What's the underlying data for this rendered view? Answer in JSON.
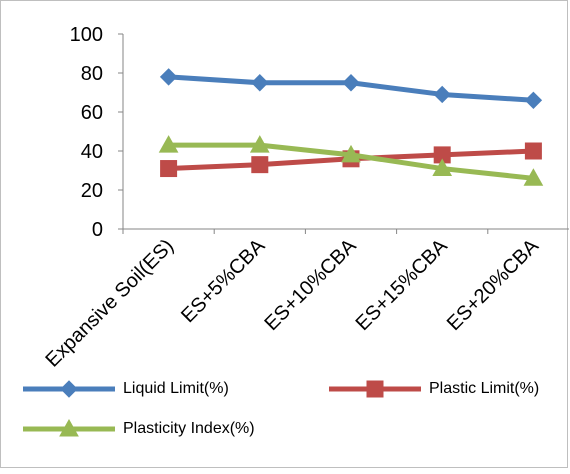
{
  "chart_data": {
    "type": "line",
    "categories": [
      "Expansive Soil(ES)",
      "ES+5%CBA",
      "ES+10%CBA",
      "ES+15%CBA",
      "ES+20%CBA"
    ],
    "ylim": [
      0,
      100
    ],
    "yticks": [
      0,
      20,
      40,
      60,
      80,
      100
    ],
    "grid": false,
    "legend_position": "bottom",
    "series": [
      {
        "name": "Liquid Limit(%)",
        "values": [
          78,
          75,
          75,
          69,
          66
        ],
        "color": "#4a7ebb",
        "marker": "diamond-icon"
      },
      {
        "name": "Plastic Limit(%)",
        "values": [
          31,
          33,
          36,
          38,
          40
        ],
        "color": "#be4b48",
        "marker": "square-icon"
      },
      {
        "name": "Plasticity Index(%)",
        "values": [
          43,
          43,
          38,
          31,
          26
        ],
        "color": "#98b954",
        "marker": "triangle-icon"
      }
    ]
  }
}
